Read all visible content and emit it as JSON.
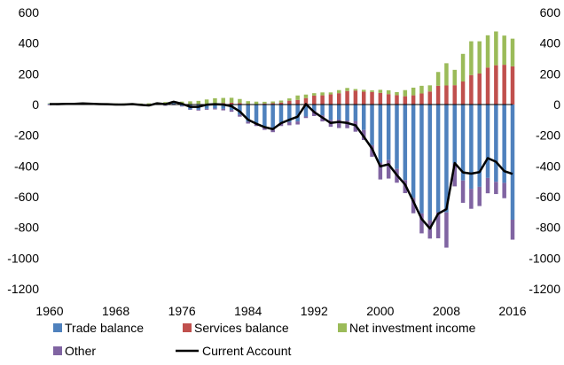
{
  "chart_data": {
    "type": "bar",
    "stacked": true,
    "title": "",
    "xlabel": "",
    "ylabel": "",
    "ylim": [
      -1200,
      600
    ],
    "yticks": [
      -1200,
      -1000,
      -800,
      -600,
      -400,
      -200,
      0,
      200,
      400,
      600
    ],
    "xticks": [
      1960,
      1968,
      1976,
      1984,
      1992,
      2000,
      2008,
      2016
    ],
    "secondary_y_axis": true,
    "grid": false,
    "legend_position": "bottom",
    "x": [
      1960,
      1961,
      1962,
      1963,
      1964,
      1965,
      1966,
      1967,
      1968,
      1969,
      1970,
      1971,
      1972,
      1973,
      1974,
      1975,
      1976,
      1977,
      1978,
      1979,
      1980,
      1981,
      1982,
      1983,
      1984,
      1985,
      1986,
      1987,
      1988,
      1989,
      1990,
      1991,
      1992,
      1993,
      1994,
      1995,
      1996,
      1997,
      1998,
      1999,
      2000,
      2001,
      2002,
      2003,
      2004,
      2005,
      2006,
      2007,
      2008,
      2009,
      2010,
      2011,
      2012,
      2013,
      2014,
      2015,
      2016
    ],
    "series": [
      {
        "name": "Trade balance",
        "kind": "bar",
        "color": "#4F81BD",
        "values": [
          5,
          5,
          4,
          5,
          7,
          5,
          4,
          4,
          1,
          1,
          3,
          -2,
          -6,
          1,
          -5,
          9,
          -9,
          -31,
          -34,
          -28,
          -25,
          -28,
          -36,
          -67,
          -112,
          -122,
          -145,
          -160,
          -122,
          -115,
          -110,
          -78,
          -40,
          -70,
          -100,
          -98,
          -104,
          -107,
          -166,
          -265,
          -378,
          -362,
          -419,
          -492,
          -608,
          -709,
          -753,
          -701,
          -702,
          -383,
          -495,
          -549,
          -536,
          -478,
          -503,
          -510,
          -750
        ]
      },
      {
        "name": "Services balance",
        "kind": "bar",
        "color": "#C0504D",
        "values": [
          -1,
          -1,
          0,
          0,
          0,
          0,
          0,
          0,
          0,
          0,
          0,
          0,
          0,
          0,
          0,
          0,
          3,
          3,
          4,
          3,
          6,
          10,
          12,
          10,
          5,
          1,
          7,
          9,
          13,
          25,
          30,
          42,
          58,
          60,
          66,
          74,
          88,
          91,
          84,
          82,
          76,
          68,
          61,
          54,
          60,
          72,
          85,
          122,
          124,
          126,
          150,
          192,
          202,
          241,
          256,
          259,
          249
        ]
      },
      {
        "name": "Net investment income",
        "kind": "bar",
        "color": "#9BBB59",
        "values": [
          3,
          4,
          4,
          5,
          5,
          6,
          5,
          5,
          6,
          6,
          6,
          7,
          8,
          12,
          16,
          13,
          16,
          18,
          20,
          30,
          35,
          33,
          32,
          26,
          17,
          18,
          11,
          11,
          13,
          15,
          29,
          23,
          16,
          19,
          13,
          20,
          20,
          10,
          12,
          10,
          20,
          25,
          20,
          40,
          50,
          50,
          40,
          90,
          145,
          100,
          180,
          220,
          210,
          210,
          220,
          190,
          180
        ]
      },
      {
        "name": "Other",
        "kind": "bar",
        "color": "#8064A2",
        "values": [
          -3,
          -3,
          -3,
          -3,
          -3,
          -3,
          -3,
          -3,
          -3,
          -3,
          -3,
          -3,
          -3,
          -3,
          -3,
          -4,
          -4,
          -4,
          -5,
          -6,
          -7,
          -10,
          -11,
          -12,
          -12,
          -18,
          -20,
          -20,
          -18,
          -20,
          -20,
          -10,
          -35,
          -40,
          -45,
          -55,
          -50,
          -70,
          -65,
          -75,
          -110,
          -120,
          -90,
          -85,
          -100,
          -130,
          -120,
          -170,
          -230,
          -150,
          -145,
          -130,
          -125,
          -100,
          -80,
          -100,
          -130
        ]
      },
      {
        "name": "Current Account",
        "kind": "line",
        "color": "#000000",
        "values": [
          3,
          3,
          4,
          4,
          7,
          5,
          3,
          2,
          0,
          0,
          3,
          -2,
          -6,
          8,
          2,
          18,
          5,
          -15,
          -15,
          -1,
          2,
          0,
          -11,
          -45,
          -99,
          -125,
          -147,
          -160,
          -121,
          -99,
          -79,
          3,
          -49,
          -85,
          -120,
          -113,
          -120,
          -135,
          -209,
          -287,
          -403,
          -389,
          -459,
          -521,
          -631,
          -745,
          -807,
          -711,
          -681,
          -381,
          -442,
          -450,
          -440,
          -349,
          -373,
          -434,
          -452
        ]
      }
    ]
  }
}
